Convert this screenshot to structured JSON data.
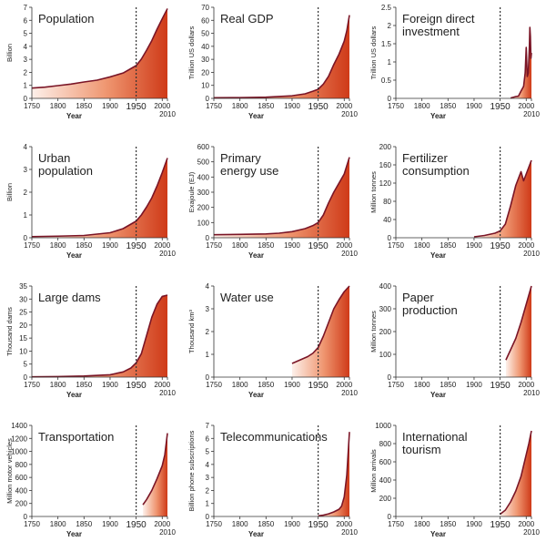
{
  "chart_data": [
    {
      "type": "area",
      "title": [
        "Population"
      ],
      "ylabel": "Billion",
      "xlabel": "Year",
      "xlim": [
        1750,
        2010
      ],
      "ylim": [
        0,
        7
      ],
      "yticks": [
        0,
        1,
        2,
        3,
        4,
        5,
        6,
        7
      ],
      "xticks": [
        1750,
        1800,
        1850,
        1900,
        1950,
        2000
      ],
      "extra_xtick": "2010",
      "marker_year": 1950,
      "marker_label": "1950",
      "x": [
        1750,
        1775,
        1800,
        1825,
        1850,
        1875,
        1900,
        1925,
        1950,
        1960,
        1970,
        1980,
        1990,
        2000,
        2010
      ],
      "y": [
        0.79,
        0.86,
        0.98,
        1.1,
        1.26,
        1.4,
        1.65,
        1.95,
        2.52,
        3.02,
        3.7,
        4.44,
        5.31,
        6.12,
        6.9
      ]
    },
    {
      "type": "area",
      "title": [
        "Real GDP"
      ],
      "ylabel": "Trillion US dollars",
      "xlabel": "Year",
      "xlim": [
        1750,
        2010
      ],
      "ylim": [
        0,
        70
      ],
      "yticks": [
        0,
        10,
        20,
        30,
        40,
        50,
        60,
        70
      ],
      "xticks": [
        1750,
        1800,
        1850,
        1900,
        1950,
        2000
      ],
      "extra_xtick": "2010",
      "marker_year": 1950,
      "marker_label": "1950",
      "x": [
        1750,
        1800,
        1850,
        1900,
        1925,
        1940,
        1950,
        1960,
        1970,
        1980,
        1990,
        2000,
        2005,
        2010
      ],
      "y": [
        0.5,
        0.6,
        0.9,
        2.0,
        3.5,
        5.5,
        7.0,
        11,
        17,
        26,
        34,
        44,
        52,
        64
      ]
    },
    {
      "type": "area",
      "title": [
        "Foreign direct",
        "investment"
      ],
      "ylabel": "Trillion US dollars",
      "xlabel": "Year",
      "xlim": [
        1750,
        2010
      ],
      "ylim": [
        0,
        2.5
      ],
      "yticks": [
        0,
        0.5,
        1,
        1.5,
        2,
        2.5
      ],
      "xticks": [
        1750,
        1800,
        1850,
        1900,
        1950,
        2000
      ],
      "extra_xtick": "2010",
      "marker_year": 1950,
      "marker_label": "1950",
      "x": [
        1970,
        1980,
        1985,
        1990,
        1995,
        1998,
        2000,
        2002,
        2004,
        2006,
        2007,
        2008,
        2009,
        2010
      ],
      "y": [
        0.01,
        0.05,
        0.06,
        0.2,
        0.33,
        0.7,
        1.4,
        0.6,
        0.7,
        1.4,
        1.95,
        1.7,
        1.1,
        1.25
      ]
    },
    {
      "type": "area",
      "title": [
        "Urban",
        "population"
      ],
      "ylabel": "Billion",
      "xlabel": "Year",
      "xlim": [
        1750,
        2010
      ],
      "ylim": [
        0,
        4
      ],
      "yticks": [
        0,
        1,
        2,
        3,
        4
      ],
      "xticks": [
        1750,
        1800,
        1850,
        1900,
        1950,
        2000
      ],
      "extra_xtick": "2010",
      "marker_year": 1950,
      "marker_label": "1950",
      "x": [
        1750,
        1800,
        1850,
        1900,
        1925,
        1950,
        1960,
        1970,
        1980,
        1990,
        2000,
        2010
      ],
      "y": [
        0.05,
        0.07,
        0.1,
        0.22,
        0.4,
        0.73,
        1.0,
        1.35,
        1.75,
        2.27,
        2.86,
        3.5
      ]
    },
    {
      "type": "area",
      "title": [
        "Primary",
        "energy use"
      ],
      "ylabel": "Exajoule (EJ)",
      "xlabel": "Year",
      "xlim": [
        1750,
        2010
      ],
      "ylim": [
        0,
        600
      ],
      "yticks": [
        0,
        100,
        200,
        300,
        400,
        500,
        600
      ],
      "xticks": [
        1750,
        1800,
        1850,
        1900,
        1950,
        2000
      ],
      "extra_xtick": "2010",
      "marker_year": 1950,
      "marker_label": "1950",
      "x": [
        1750,
        1800,
        1850,
        1875,
        1900,
        1925,
        1940,
        1950,
        1960,
        1970,
        1980,
        1990,
        2000,
        2010
      ],
      "y": [
        20,
        22,
        25,
        30,
        40,
        60,
        80,
        100,
        150,
        230,
        300,
        360,
        420,
        530
      ]
    },
    {
      "type": "area",
      "title": [
        "Fertilizer",
        "consumption"
      ],
      "ylabel": "Million tonnes",
      "xlabel": "Year",
      "xlim": [
        1750,
        2010
      ],
      "ylim": [
        0,
        200
      ],
      "yticks": [
        0,
        40,
        80,
        120,
        160,
        200
      ],
      "xticks": [
        1750,
        1800,
        1850,
        1900,
        1950,
        2000
      ],
      "extra_xtick": "2010",
      "marker_year": 1950,
      "marker_label": "1950",
      "x": [
        1900,
        1920,
        1940,
        1950,
        1960,
        1970,
        1980,
        1985,
        1990,
        1995,
        2000,
        2005,
        2010
      ],
      "y": [
        2,
        5,
        10,
        15,
        30,
        70,
        115,
        130,
        145,
        125,
        140,
        155,
        170
      ]
    },
    {
      "type": "area",
      "title": [
        "Large dams"
      ],
      "ylabel": "Thousand dams",
      "xlabel": "Year",
      "xlim": [
        1750,
        2010
      ],
      "ylim": [
        0,
        35
      ],
      "yticks": [
        0,
        5,
        10,
        15,
        20,
        25,
        30,
        35
      ],
      "xticks": [
        1750,
        1800,
        1850,
        1900,
        1950,
        2000
      ],
      "extra_xtick": "2010",
      "marker_year": 1950,
      "marker_label": "1950",
      "x": [
        1750,
        1800,
        1850,
        1900,
        1925,
        1940,
        1950,
        1960,
        1970,
        1980,
        1990,
        2000,
        2010
      ],
      "y": [
        0.1,
        0.2,
        0.4,
        0.9,
        2,
        3.5,
        5.5,
        9,
        16,
        23,
        28,
        31,
        31.5
      ]
    },
    {
      "type": "area",
      "title": [
        "Water use"
      ],
      "ylabel": "Thousand km³",
      "xlabel": "Year",
      "xlim": [
        1750,
        2010
      ],
      "ylim": [
        0,
        4
      ],
      "yticks": [
        0,
        1,
        2,
        3,
        4
      ],
      "xticks": [
        1750,
        1800,
        1850,
        1900,
        1950,
        2000
      ],
      "extra_xtick": "2010",
      "marker_year": 1950,
      "marker_label": "1950",
      "x": [
        1900,
        1910,
        1920,
        1930,
        1940,
        1950,
        1960,
        1970,
        1980,
        1990,
        2000,
        2010
      ],
      "y": [
        0.6,
        0.7,
        0.8,
        0.9,
        1.05,
        1.3,
        1.8,
        2.4,
        3.0,
        3.4,
        3.75,
        4.0
      ]
    },
    {
      "type": "area",
      "title": [
        "Paper",
        "production"
      ],
      "ylabel": "Million tonnes",
      "xlabel": "Year",
      "xlim": [
        1750,
        2010
      ],
      "ylim": [
        0,
        400
      ],
      "yticks": [
        0,
        100,
        200,
        300,
        400
      ],
      "xticks": [
        1750,
        1800,
        1850,
        1900,
        1950,
        2000
      ],
      "extra_xtick": "2010",
      "marker_year": 1950,
      "marker_label": "1950",
      "x": [
        1961,
        1970,
        1980,
        1990,
        2000,
        2005,
        2010
      ],
      "y": [
        75,
        120,
        170,
        240,
        320,
        360,
        400
      ]
    },
    {
      "type": "area",
      "title": [
        "Transportation"
      ],
      "ylabel": "Million motor vehicles",
      "xlabel": "Year",
      "xlim": [
        1750,
        2010
      ],
      "ylim": [
        0,
        1400
      ],
      "yticks": [
        0,
        200,
        400,
        600,
        800,
        1000,
        1200,
        1400
      ],
      "xticks": [
        1750,
        1800,
        1850,
        1900,
        1950,
        2000
      ],
      "extra_xtick": "2010",
      "marker_year": 1950,
      "marker_label": "1950",
      "x": [
        1963,
        1970,
        1980,
        1990,
        2000,
        2005,
        2010
      ],
      "y": [
        180,
        260,
        400,
        580,
        780,
        950,
        1280
      ]
    },
    {
      "type": "area",
      "title": [
        "Telecommunications"
      ],
      "ylabel": "Billion phone subscriptions",
      "xlabel": "Year",
      "xlim": [
        1750,
        2010
      ],
      "ylim": [
        0,
        7
      ],
      "yticks": [
        0,
        1,
        2,
        3,
        4,
        5,
        6,
        7
      ],
      "xticks": [
        1750,
        1800,
        1850,
        1900,
        1950,
        2000
      ],
      "extra_xtick": "2010",
      "marker_year": 1950,
      "marker_label": "1950",
      "x": [
        1950,
        1960,
        1970,
        1980,
        1990,
        1995,
        2000,
        2005,
        2010
      ],
      "y": [
        0.05,
        0.1,
        0.2,
        0.35,
        0.55,
        0.8,
        1.5,
        3.2,
        6.5
      ]
    },
    {
      "type": "area",
      "title": [
        "International",
        "tourism"
      ],
      "ylabel": "Million arrivals",
      "xlabel": "Year",
      "xlim": [
        1750,
        2010
      ],
      "ylim": [
        0,
        1000
      ],
      "yticks": [
        0,
        200,
        400,
        600,
        800,
        1000
      ],
      "xticks": [
        1750,
        1800,
        1850,
        1900,
        1950,
        2000
      ],
      "extra_xtick": "2010",
      "marker_year": 1950,
      "marker_label": "1950",
      "x": [
        1950,
        1960,
        1970,
        1980,
        1990,
        2000,
        2005,
        2010
      ],
      "y": [
        25,
        70,
        160,
        280,
        440,
        680,
        800,
        940
      ]
    }
  ]
}
